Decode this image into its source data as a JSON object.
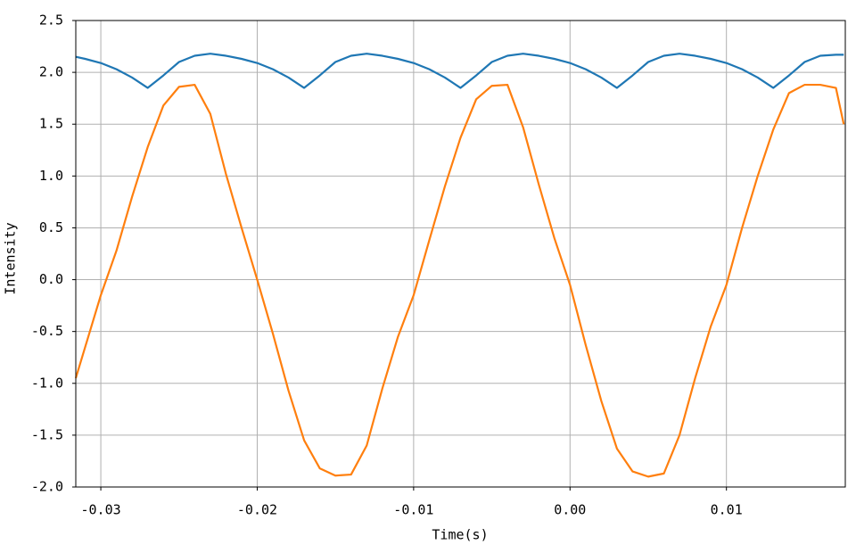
{
  "chart_data": {
    "type": "line",
    "x_label": "Time(s)",
    "y_label": "Intensity",
    "x": [
      -0.0316,
      -0.031,
      -0.03,
      -0.029,
      -0.028,
      -0.027,
      -0.026,
      -0.025,
      -0.024,
      -0.023,
      -0.022,
      -0.021,
      -0.02,
      -0.019,
      -0.018,
      -0.017,
      -0.016,
      -0.015,
      -0.014,
      -0.013,
      -0.012,
      -0.011,
      -0.01,
      -0.009,
      -0.008,
      -0.007,
      -0.006,
      -0.005,
      -0.004,
      -0.003,
      -0.002,
      -0.001,
      0.0,
      0.001,
      0.002,
      0.003,
      0.004,
      0.005,
      0.006,
      0.007,
      0.008,
      0.009,
      0.01,
      0.011,
      0.012,
      0.013,
      0.014,
      0.015,
      0.016,
      0.017,
      0.0175
    ],
    "series": [
      {
        "color": "#1f77b4",
        "values": [
          2.15,
          2.13,
          2.09,
          2.03,
          1.95,
          1.85,
          1.97,
          2.1,
          2.16,
          2.18,
          2.16,
          2.13,
          2.09,
          2.03,
          1.95,
          1.85,
          1.97,
          2.1,
          2.16,
          2.18,
          2.16,
          2.13,
          2.09,
          2.03,
          1.95,
          1.85,
          1.97,
          2.1,
          2.16,
          2.18,
          2.16,
          2.13,
          2.09,
          2.03,
          1.95,
          1.85,
          1.97,
          2.1,
          2.16,
          2.18,
          2.16,
          2.13,
          2.09,
          2.03,
          1.95,
          1.85,
          1.97,
          2.1,
          2.16,
          2.17,
          2.17
        ]
      },
      {
        "color": "#ff7f0e",
        "values": [
          -0.95,
          -0.65,
          -0.15,
          0.28,
          0.8,
          1.28,
          1.68,
          1.86,
          1.88,
          1.6,
          1.02,
          0.5,
          0.0,
          -0.52,
          -1.07,
          -1.55,
          -1.82,
          -1.89,
          -1.88,
          -1.6,
          -1.05,
          -0.55,
          -0.15,
          0.38,
          0.9,
          1.37,
          1.74,
          1.87,
          1.88,
          1.47,
          0.92,
          0.4,
          -0.05,
          -0.63,
          -1.17,
          -1.63,
          -1.85,
          -1.9,
          -1.87,
          -1.5,
          -0.95,
          -0.45,
          -0.05,
          0.5,
          1.0,
          1.45,
          1.8,
          1.88,
          1.88,
          1.85,
          1.5
        ]
      }
    ],
    "xlim": [
      -0.0316,
      0.0176
    ],
    "ylim": [
      -2.0,
      2.5
    ],
    "xticks": [
      {
        "value": -0.03,
        "label": "-0.03"
      },
      {
        "value": -0.02,
        "label": "-0.02"
      },
      {
        "value": -0.01,
        "label": "-0.01"
      },
      {
        "value": 0,
        "label": "0.00"
      },
      {
        "value": 0.01,
        "label": "0.01"
      }
    ],
    "yticks": [
      {
        "value": -2,
        "label": "-2.0"
      },
      {
        "value": -1.5,
        "label": "-1.5"
      },
      {
        "value": -1,
        "label": "-1.0"
      },
      {
        "value": -0.5,
        "label": "-0.5"
      },
      {
        "value": 0,
        "label": "0.0"
      },
      {
        "value": 0.5,
        "label": "0.5"
      },
      {
        "value": 1,
        "label": "1.0"
      },
      {
        "value": 1.5,
        "label": "1.5"
      },
      {
        "value": 2,
        "label": "2.0"
      },
      {
        "value": 2.5,
        "label": "2.5"
      }
    ],
    "grid": true
  }
}
